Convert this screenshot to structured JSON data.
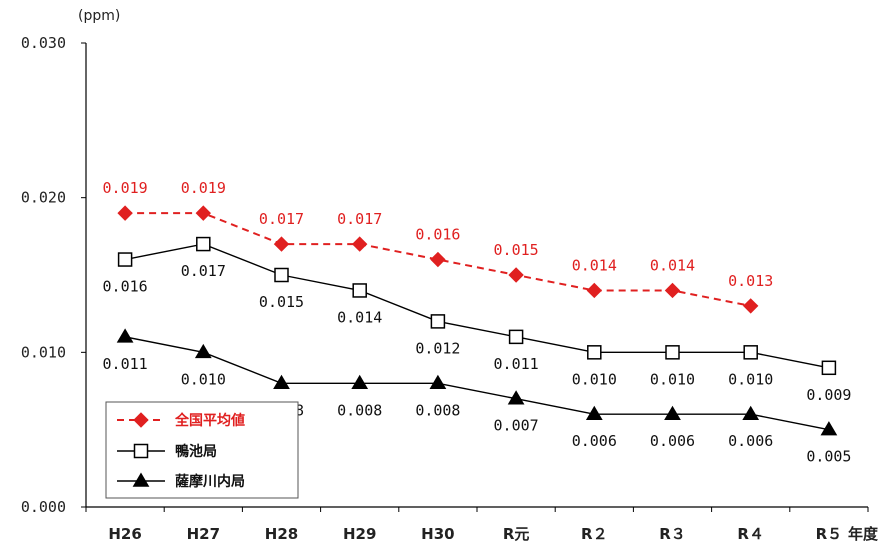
{
  "chart_data": {
    "type": "line",
    "y_unit": "(ppm)",
    "x_unit": "年度",
    "ylim": [
      0,
      0.03
    ],
    "y_ticks": [
      "0.000",
      "0.010",
      "0.020",
      "0.030"
    ],
    "categories": [
      "H26",
      "H27",
      "H28",
      "H29",
      "H30",
      "R元",
      "R２",
      "R３",
      "R４",
      "R５"
    ],
    "grid": false,
    "legend_position": "bottom-left",
    "series": [
      {
        "name": "全国平均値",
        "color": "#e02020",
        "marker": "diamond",
        "line_style": "dashed",
        "values": [
          0.019,
          0.019,
          0.017,
          0.017,
          0.016,
          0.015,
          0.014,
          0.014,
          0.013,
          null
        ],
        "labels": [
          "0.019",
          "0.019",
          "0.017",
          "0.017",
          "0.016",
          "0.015",
          "0.014",
          "0.014",
          "0.013",
          ""
        ]
      },
      {
        "name": "鴨池局",
        "color": "#000000",
        "marker": "square-open",
        "line_style": "solid",
        "values": [
          0.016,
          0.017,
          0.015,
          0.014,
          0.012,
          0.011,
          0.01,
          0.01,
          0.01,
          0.009
        ],
        "labels": [
          "0.016",
          "0.017",
          "0.015",
          "0.014",
          "0.012",
          "0.011",
          "0.010",
          "0.010",
          "0.010",
          "0.009"
        ]
      },
      {
        "name": "薩摩川内局",
        "color": "#000000",
        "marker": "triangle",
        "line_style": "solid",
        "values": [
          0.011,
          0.01,
          0.008,
          0.008,
          0.008,
          0.007,
          0.006,
          0.006,
          0.006,
          0.005
        ],
        "labels": [
          "0.011",
          "0.010",
          "0.008",
          "0.008",
          "0.008",
          "0.007",
          "0.006",
          "0.006",
          "0.006",
          "0.005"
        ]
      }
    ]
  }
}
